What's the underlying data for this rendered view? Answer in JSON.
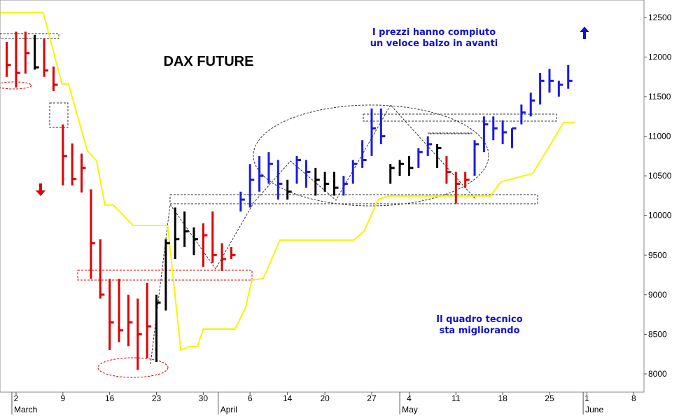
{
  "chart_data": {
    "type": "ohlc",
    "title": "DAX FUTURE",
    "annotations": [
      "I prezzi hanno compiuto",
      "un veloce balzo in avanti",
      "Il quadro tecnico",
      "sta migliorando"
    ],
    "x": [
      -1,
      0,
      1,
      2,
      3,
      4,
      5,
      6,
      7,
      8,
      9,
      10,
      11,
      12,
      13,
      14,
      15,
      16,
      17,
      18,
      19,
      20,
      21,
      22,
      23,
      24,
      25,
      26,
      27,
      28,
      29,
      30,
      31,
      32,
      33,
      34,
      35,
      36,
      37,
      38,
      39,
      40,
      41,
      42,
      43,
      44,
      45,
      46,
      47,
      48,
      49,
      50,
      51,
      52,
      53,
      54,
      55,
      56,
      57,
      58,
      59
    ],
    "high": [
      12190,
      12320,
      12320,
      12280,
      12235,
      11880,
      11150,
      10910,
      10780,
      10330,
      9700,
      9200,
      9200,
      9000,
      8950,
      9150,
      9000,
      9700,
      10100,
      10050,
      9850,
      9900,
      10050,
      9650,
      9600,
      10300,
      10650,
      10750,
      10800,
      10700,
      10450,
      10750,
      10700,
      10600,
      10550,
      10550,
      10500,
      10700,
      10950,
      11350,
      11350,
      10650,
      10700,
      10750,
      10850,
      11000,
      10900,
      10750,
      10550,
      10550,
      10950,
      11250,
      11250,
      11200,
      11100,
      11400,
      11550,
      11800,
      11850,
      11700,
      11900
    ],
    "low": [
      11750,
      11615,
      11790,
      11840,
      11750,
      11570,
      10380,
      10380,
      10290,
      9200,
      8950,
      8300,
      8400,
      8350,
      8050,
      8200,
      8150,
      8800,
      9450,
      9600,
      9500,
      9350,
      9400,
      9300,
      9450,
      10050,
      10100,
      10300,
      10400,
      10200,
      10200,
      10400,
      10350,
      10250,
      10300,
      10250,
      10250,
      10400,
      10600,
      10750,
      10900,
      10400,
      10500,
      10500,
      10600,
      10750,
      10600,
      10400,
      10150,
      10350,
      10500,
      10800,
      10950,
      10900,
      10850,
      11150,
      11250,
      11400,
      11550,
      11500,
      11600
    ],
    "close": [
      11900,
      11800,
      12050,
      11870,
      11830,
      11650,
      10750,
      10460,
      10600,
      9650,
      9000,
      8650,
      8550,
      8650,
      8500,
      8600,
      8900,
      9650,
      9700,
      9800,
      9700,
      9750,
      9500,
      9450,
      9500,
      10200,
      10450,
      10500,
      10650,
      10400,
      10300,
      10700,
      10550,
      10450,
      10400,
      10350,
      10400,
      10650,
      10700,
      11100,
      11000,
      10600,
      10650,
      10600,
      10800,
      10900,
      10850,
      10550,
      10400,
      10450,
      10900,
      11150,
      11100,
      11050,
      11100,
      11300,
      11450,
      11700,
      11700,
      11650,
      11700
    ],
    "colors": [
      "#e00000",
      "#e00000",
      "#e00000",
      "#000000",
      "#e00000",
      "#e00000",
      "#e00000",
      "#e00000",
      "#e00000",
      "#e00000",
      "#e00000",
      "#e00000",
      "#e00000",
      "#e00000",
      "#e00000",
      "#e00000",
      "#000000",
      "#000000",
      "#000000",
      "#000000",
      "#000000",
      "#e00000",
      "#e00000",
      "#e00000",
      "#e00000",
      "#1a1ae6",
      "#1a1ae6",
      "#1a1ae6",
      "#1a1ae6",
      "#1a1ae6",
      "#000000",
      "#1a1ae6",
      "#1a1ae6",
      "#000000",
      "#000000",
      "#000000",
      "#1a1ae6",
      "#1a1ae6",
      "#1a1ae6",
      "#1a1ae6",
      "#1a1ae6",
      "#000000",
      "#000000",
      "#000000",
      "#1a1ae6",
      "#1a1ae6",
      "#000000",
      "#e00000",
      "#e00000",
      "#e00000",
      "#1a1ae6",
      "#1a1ae6",
      "#1a1ae6",
      "#1a1ae6",
      "#1a1ae6",
      "#1a1ae6",
      "#1a1ae6",
      "#1a1ae6",
      "#1a1ae6",
      "#1a1ae6",
      "#1a1ae6"
    ],
    "stop_line": {
      "color": "#f5f500",
      "x": [
        -1.7,
        2.9,
        4.9,
        5.6,
        7.6,
        8.6,
        9.5,
        10.4,
        12.5,
        16.2,
        17.6,
        18.5,
        19.4,
        20.0,
        23.4,
        24.5,
        25.2,
        26.4,
        28.2,
        36.1,
        37.2,
        38.7,
        39.8,
        50.7,
        51.8,
        54.0,
        55.2,
        57.4,
        58.5,
        59.7
      ],
      "values": [
        12562,
        12562,
        11660,
        11660,
        10820,
        10688,
        10131,
        10131,
        9874,
        9874,
        8300,
        8345,
        8345,
        8566,
        8566,
        8831,
        9185,
        9202,
        9689,
        9689,
        9804,
        10202,
        10246,
        10246,
        10423,
        10493,
        10529,
        10953,
        11174,
        11174
      ]
    },
    "xlim": [
      -1.72,
      67.1
    ],
    "ylim": [
      7770,
      12720
    ],
    "yticks": [
      8000,
      8500,
      9000,
      9500,
      10000,
      10500,
      11000,
      11500,
      12000,
      12500
    ],
    "xticks": [
      {
        "value": 0,
        "label": "2"
      },
      {
        "value": 5,
        "label": "9"
      },
      {
        "value": 10,
        "label": "16"
      },
      {
        "value": 15,
        "label": "23"
      },
      {
        "value": 20,
        "label": "30"
      },
      {
        "value": 25,
        "label": "6"
      },
      {
        "value": 29,
        "label": "14"
      },
      {
        "value": 33,
        "label": "20"
      },
      {
        "value": 38,
        "label": "27"
      },
      {
        "value": 42,
        "label": "4"
      },
      {
        "value": 47,
        "label": "11"
      },
      {
        "value": 52,
        "label": "18"
      },
      {
        "value": 57,
        "label": "25"
      },
      {
        "value": 61,
        "label": "1"
      },
      {
        "value": 66,
        "label": "8"
      }
    ],
    "months": [
      {
        "value": -0.45,
        "label": "March"
      },
      {
        "value": 21.6,
        "label": "April"
      },
      {
        "value": 41,
        "label": "May"
      },
      {
        "value": 60.6,
        "label": "June"
      }
    ]
  }
}
